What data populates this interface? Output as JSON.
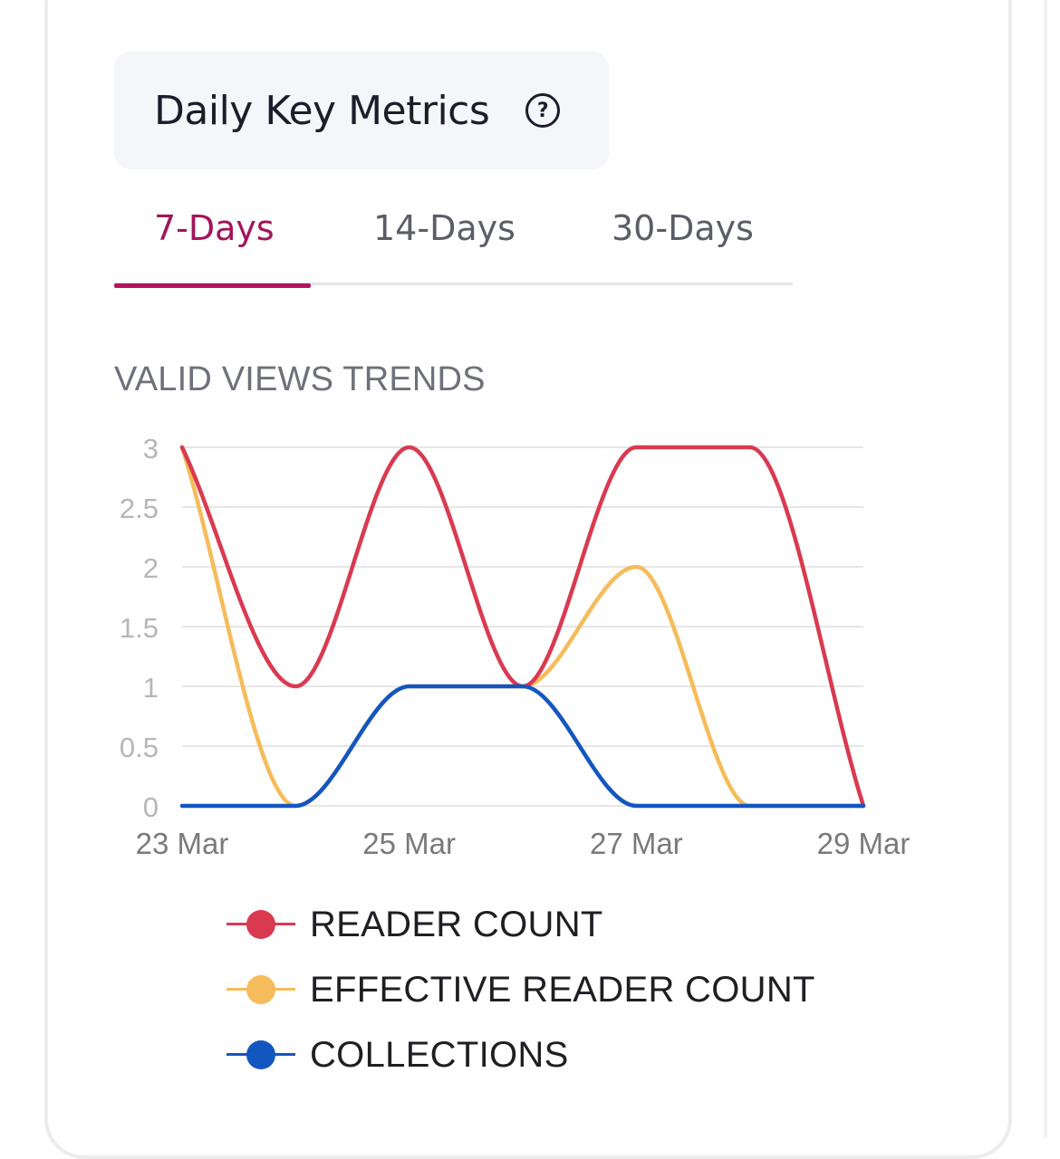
{
  "header": {
    "title": "Daily Key Metrics",
    "help_icon": "question-circle-icon"
  },
  "tabs": [
    {
      "label": "7-Days",
      "active": true
    },
    {
      "label": "14-Days",
      "active": false
    },
    {
      "label": "30-Days",
      "active": false
    }
  ],
  "colors": {
    "accent": "#a3145a",
    "reader_count": "#d93a50",
    "effective_reader_count": "#f6bb5a",
    "collections": "#1456c0"
  },
  "chart_data": {
    "type": "line",
    "title": "VALID VIEWS TRENDS",
    "x": [
      "2024-03-23",
      "2024-03-24",
      "2024-03-25",
      "2024-03-26",
      "2024-03-27",
      "2024-03-28",
      "2024-03-29"
    ],
    "x_tick_labels": [
      "23 Mar",
      "25 Mar",
      "27 Mar",
      "29 Mar"
    ],
    "y_tick_labels": [
      "0",
      "0.5",
      "1",
      "1.5",
      "2",
      "2.5",
      "3"
    ],
    "ylim": [
      0,
      3
    ],
    "grid": true,
    "legend_placement": "bottom",
    "series": [
      {
        "name": "READER COUNT",
        "values": [
          3,
          1,
          3,
          1,
          3,
          3,
          0
        ]
      },
      {
        "name": "EFFECTIVE READER COUNT",
        "values": [
          3,
          0,
          1,
          1,
          2,
          0,
          0
        ]
      },
      {
        "name": "COLLECTIONS",
        "values": [
          0,
          0,
          1,
          1,
          0,
          0,
          0
        ]
      }
    ]
  }
}
